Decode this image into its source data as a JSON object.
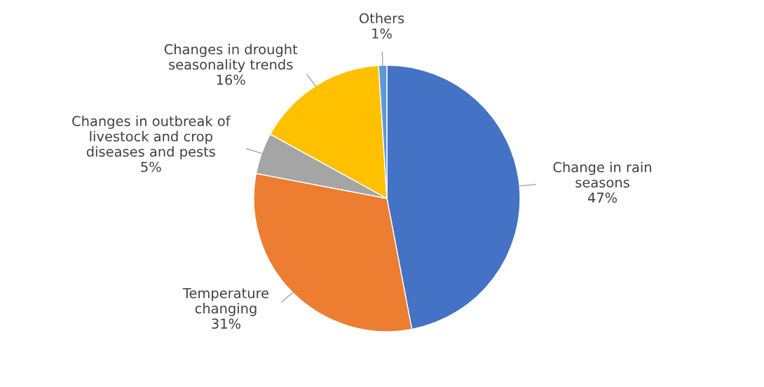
{
  "chart_data": {
    "type": "pie",
    "categories": [
      "Change in rain\nseasons",
      "Temperature\nchanging",
      "Changes in outbreak of\nlivestock and crop\ndiseases and pests",
      "Changes in drought\nseasonality trends",
      "Others"
    ],
    "values": [
      47,
      31,
      5,
      16,
      1
    ],
    "value_labels": [
      "47%",
      "31%",
      "5%",
      "16%",
      "1%"
    ],
    "colors": [
      "#4472c4",
      "#ed7d31",
      "#a5a5a5",
      "#ffc000",
      "#5b9bd5"
    ]
  }
}
